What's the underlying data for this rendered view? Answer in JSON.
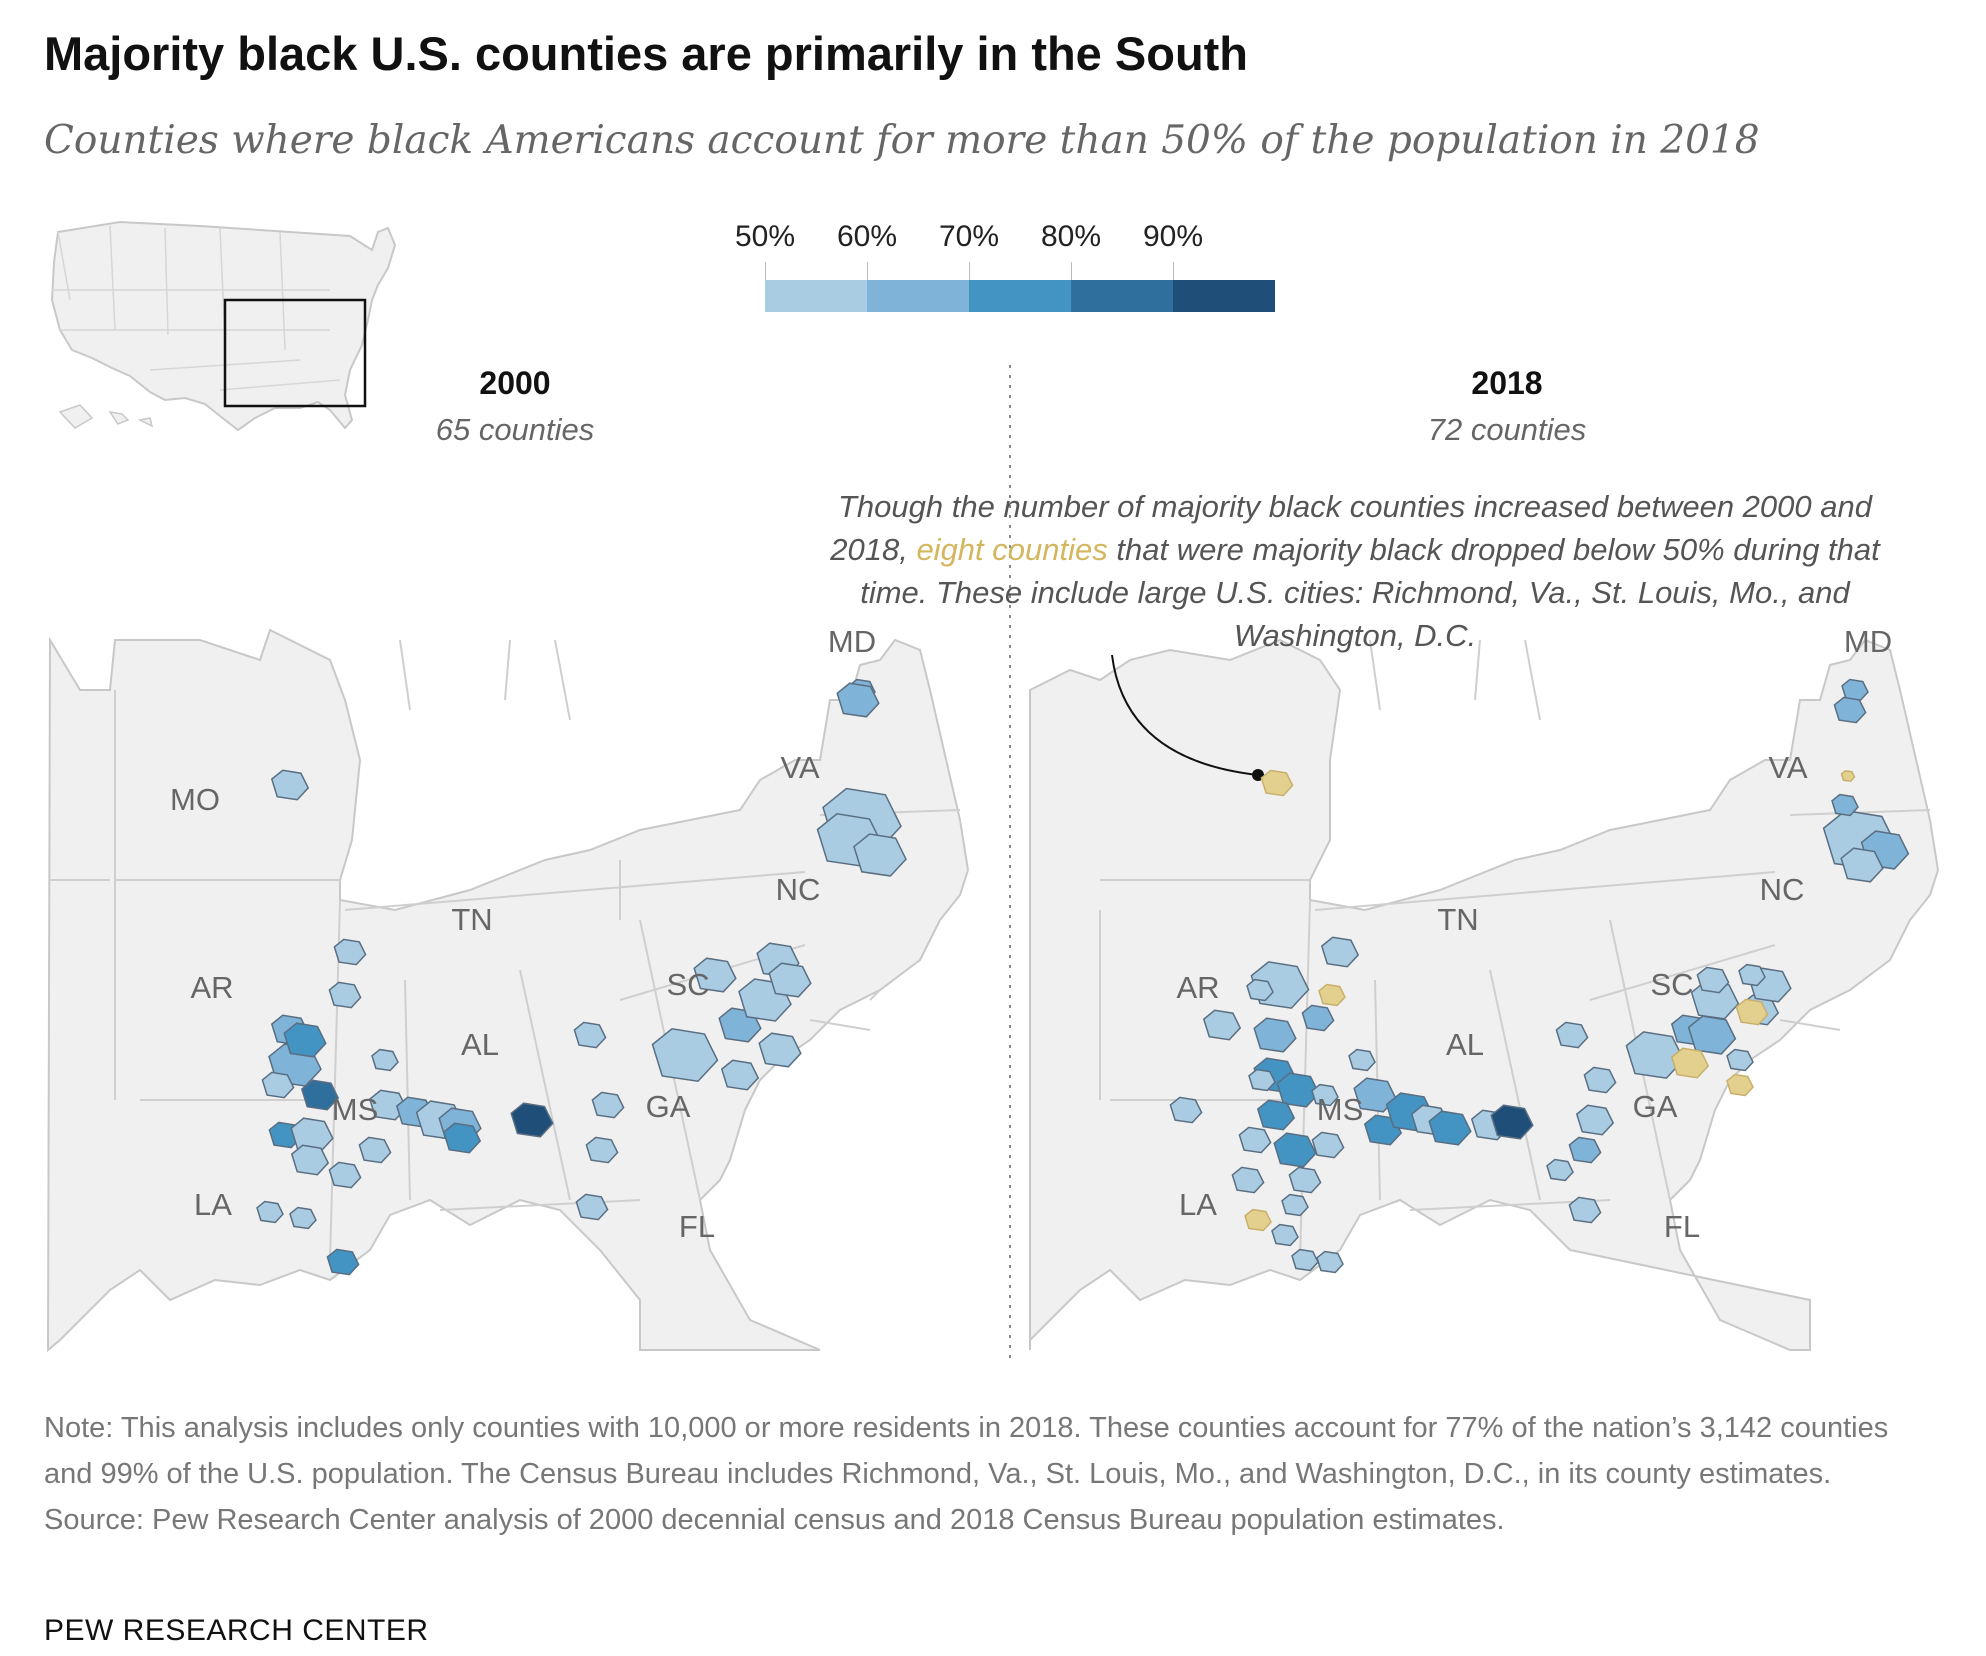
{
  "title": "Majority black U.S. counties are primarily in the South",
  "subtitle": "Counties where black Americans account for more than 50% of the population in 2018",
  "legend": {
    "ticks": [
      "50%",
      "60%",
      "70%",
      "80%",
      "90%"
    ],
    "colors": [
      "#a9cce3",
      "#7fb3d7",
      "#4393c3",
      "#2f6f9e",
      "#1f4e79"
    ]
  },
  "panels": [
    {
      "year": "2000",
      "count_label": "65 counties",
      "states": [
        "MO",
        "AR",
        "TN",
        "NC",
        "VA",
        "MD",
        "SC",
        "GA",
        "AL",
        "MS",
        "LA",
        "FL"
      ]
    },
    {
      "year": "2018",
      "count_label": "72 counties",
      "states": [
        "AR",
        "TN",
        "NC",
        "VA",
        "MD",
        "SC",
        "GA",
        "AL",
        "MS",
        "LA",
        "FL"
      ]
    }
  ],
  "annotation": {
    "part1": "Though the number of majority black counties increased between 2000 and 2018,",
    "highlight": "eight counties",
    "part2": "that were majority black dropped below 50% during that time. These include large U.S. cities: Richmond, Va., St. Louis, Mo., and Washington, D.C.",
    "highlight_color": "#d4b65e"
  },
  "note": "Note: This analysis includes only counties with 10,000 or more residents in 2018. These counties account for 77% of the nation’s 3,142 counties and 99% of the U.S. population. The Census Bureau includes Richmond, Va., St. Louis, Mo., and Washington, D.C., in its county estimates.",
  "source": "Source: Pew Research Center analysis of 2000 decennial census and 2018 Census Bureau population estimates.",
  "brand": "PEW RESEARCH CENTER",
  "colors": {
    "land": "#f0f0f0",
    "border": "#cfcfcf",
    "dropped": "#e3cf8e"
  }
}
